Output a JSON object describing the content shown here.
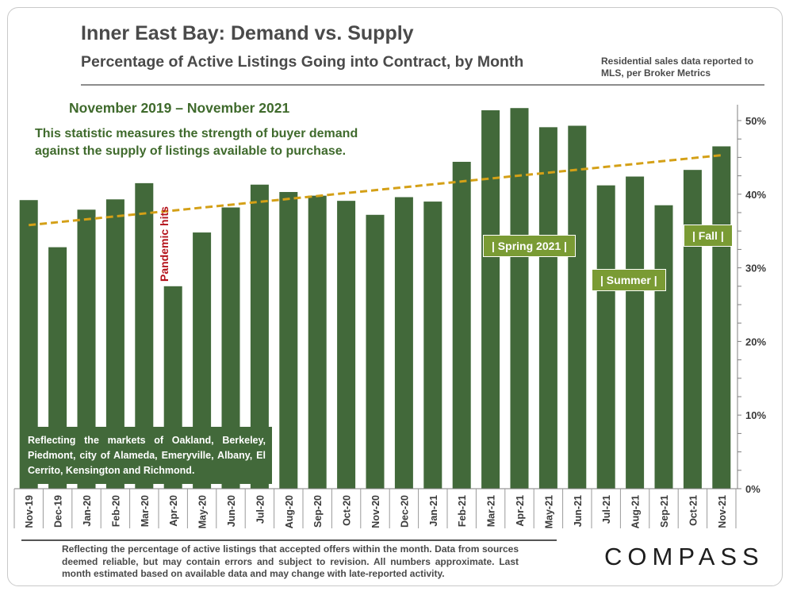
{
  "header": {
    "title": "Inner East Bay: Demand vs. Supply",
    "subtitle": "Percentage of Active Listings Going into Contract, by Month",
    "source_note": "Residential sales data reported to MLS, per Broker Metrics"
  },
  "annotations": {
    "period": "November 2019 – November 2021",
    "description": "This statistic measures the strength of buyer demand against the supply of listings available to purchase.",
    "markets": "Reflecting the markets of Oakland, Berkeley, Piedmont, city of Alameda, Emeryville, Albany, El Cerrito, Kensington and Richmond.",
    "pandemic": "Pandemic hits",
    "spring": "| Spring 2021 |",
    "summer": "| Summer |",
    "fall": "| Fall |"
  },
  "footer": {
    "note": "Reflecting the percentage of active listings that accepted offers within the month. Data from sources deemed reliable, but may contain errors and subject to revision. All numbers approximate. Last month estimated based on available data and may change with late-reported activity.",
    "logo": "COMPASS"
  },
  "colors": {
    "bar": "#42693a",
    "trend": "#d4a017",
    "accent_text": "#3f6a2c",
    "pandemic": "#b4121b"
  },
  "chart_data": {
    "type": "bar",
    "title": "Inner East Bay: Demand vs. Supply",
    "xlabel": "",
    "ylabel": "",
    "ylim": [
      0,
      52
    ],
    "yticks": [
      0,
      10,
      20,
      30,
      40,
      50
    ],
    "ytick_labels": [
      "0%",
      "10%",
      "20%",
      "30%",
      "40%",
      "50%"
    ],
    "categories": [
      "Nov-19",
      "Dec-19",
      "Jan-20",
      "Feb-20",
      "Mar-20",
      "Apr-20",
      "May-20",
      "Jun-20",
      "Jul-20",
      "Aug-20",
      "Sep-20",
      "Oct-20",
      "Nov-20",
      "Dec-20",
      "Jan-21",
      "Feb-21",
      "Mar-21",
      "Apr-21",
      "May-21",
      "Jun-21",
      "Jul-21",
      "Aug-21",
      "Sep-21",
      "Oct-21",
      "Nov-21"
    ],
    "values": [
      39.2,
      32.8,
      37.9,
      39.3,
      41.5,
      27.5,
      34.8,
      38.2,
      41.3,
      40.3,
      39.8,
      39.1,
      37.2,
      39.6,
      39.0,
      44.4,
      51.4,
      51.7,
      49.1,
      49.3,
      41.2,
      42.4,
      38.5,
      43.3,
      46.5
    ],
    "trendline": {
      "type": "linear",
      "start": 35.8,
      "end": 45.3
    },
    "grid": false
  }
}
